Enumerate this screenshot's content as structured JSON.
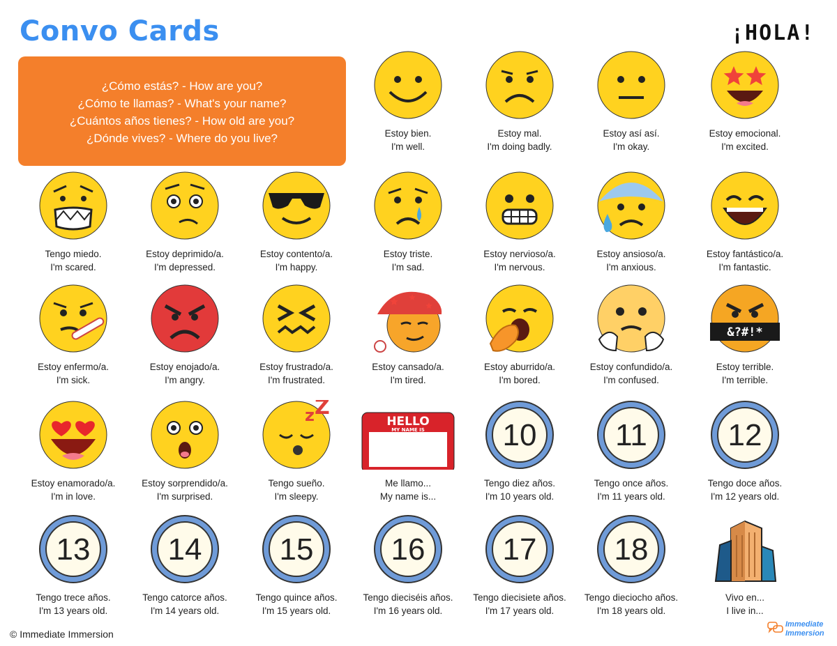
{
  "header": {
    "title": "Convo Cards",
    "badge": "¡HOLA!"
  },
  "questions": [
    "¿Cómo estás? - How are you?",
    "¿Cómo te llamas? - What's your name?",
    "¿Cuántos años tienes? - How old are you?",
    "¿Dónde vives? - Where do you live?"
  ],
  "cards": [
    {
      "es": "Estoy bien.",
      "en": "I'm well.",
      "icon": "smiley-face-icon"
    },
    {
      "es": "Estoy mal.",
      "en": "I'm doing badly.",
      "icon": "frowning-face-icon"
    },
    {
      "es": "Estoy así así.",
      "en": "I'm okay.",
      "icon": "neutral-face-icon"
    },
    {
      "es": "Estoy emocional.",
      "en": "I'm excited.",
      "icon": "star-struck-face-icon"
    },
    {
      "es": "Tengo miedo.",
      "en": "I'm scared.",
      "icon": "fearful-grimace-face-icon"
    },
    {
      "es": "Estoy deprimido/a.",
      "en": "I'm depressed.",
      "icon": "woozy-face-icon"
    },
    {
      "es": "Estoy contento/a.",
      "en": "I'm happy.",
      "icon": "sunglasses-face-icon"
    },
    {
      "es": "Estoy triste.",
      "en": "I'm sad.",
      "icon": "crying-face-icon"
    },
    {
      "es": "Estoy nervioso/a.",
      "en": "I'm nervous.",
      "icon": "grimacing-face-icon"
    },
    {
      "es": "Estoy ansioso/a.",
      "en": "I'm anxious.",
      "icon": "anxious-sweat-face-icon"
    },
    {
      "es": "Estoy fantástico/a.",
      "en": "I'm fantastic.",
      "icon": "laughing-face-icon"
    },
    {
      "es": "Estoy enfermo/a.",
      "en": "I'm sick.",
      "icon": "thermometer-face-icon"
    },
    {
      "es": "Estoy enojado/a.",
      "en": "I'm angry.",
      "icon": "angry-face-icon"
    },
    {
      "es": "Estoy frustrado/a.",
      "en": "I'm frustrated.",
      "icon": "confounded-face-icon"
    },
    {
      "es": "Estoy cansado/a.",
      "en": "I'm tired.",
      "icon": "nightcap-face-icon"
    },
    {
      "es": "Estoy aburrido/a.",
      "en": "I'm bored.",
      "icon": "yawning-face-icon"
    },
    {
      "es": "Estoy confundido/a.",
      "en": "I'm confused.",
      "icon": "confused-hands-face-icon"
    },
    {
      "es": "Estoy terrible.",
      "en": "I'm terrible.",
      "icon": "cursing-face-icon"
    },
    {
      "es": "Estoy enamorado/a.",
      "en": "I'm in love.",
      "icon": "heart-eyes-face-icon"
    },
    {
      "es": "Estoy sorprendido/a.",
      "en": "I'm surprised.",
      "icon": "surprised-face-icon"
    },
    {
      "es": "Tengo sueño.",
      "en": "I'm sleepy.",
      "icon": "sleeping-face-icon"
    },
    {
      "es": "Me llamo...",
      "en": "My name is...",
      "icon": "name-tag-icon",
      "tag_top": "HELLO",
      "tag_sub": "MY NAME IS"
    },
    {
      "es": "Tengo diez años.",
      "en": "I'm 10 years old.",
      "icon": "number-10-icon",
      "num": "10"
    },
    {
      "es": "Tengo once años.",
      "en": "I'm 11 years old.",
      "icon": "number-11-icon",
      "num": "11"
    },
    {
      "es": "Tengo doce años.",
      "en": "I'm 12 years old.",
      "icon": "number-12-icon",
      "num": "12"
    },
    {
      "es": "Tengo trece años.",
      "en": "I'm 13 years old.",
      "icon": "number-13-icon",
      "num": "13"
    },
    {
      "es": "Tengo catorce años.",
      "en": "I'm 14 years old.",
      "icon": "number-14-icon",
      "num": "14"
    },
    {
      "es": "Tengo quince años.",
      "en": "I'm 15 years old.",
      "icon": "number-15-icon",
      "num": "15"
    },
    {
      "es": "Tengo dieciséis años.",
      "en": "I'm 16 years old.",
      "icon": "number-16-icon",
      "num": "16"
    },
    {
      "es": "Tengo diecisiete años.",
      "en": "I'm 17 years old.",
      "icon": "number-17-icon",
      "num": "17"
    },
    {
      "es": "Tengo dieciocho años.",
      "en": "I'm 18 years old.",
      "icon": "number-18-icon",
      "num": "18"
    },
    {
      "es": "Vivo en...",
      "en": "I live in...",
      "icon": "skyscraper-city-icon"
    }
  ],
  "footer": {
    "copyright": "© Immediate Immersion",
    "logo_line1": "Immediate",
    "logo_line2": "Immersion"
  },
  "colors": {
    "title_blue": "#3b8ff0",
    "box_orange": "#f47f2b",
    "emoji_yellow": "#ffd21f",
    "angry_red": "#e23a3a",
    "badge_blue": "#6f9bd8",
    "tag_red": "#d8232a"
  }
}
